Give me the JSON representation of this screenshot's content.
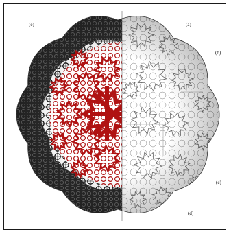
{
  "panel_labels": {
    "e": "(e)",
    "a": "(a)",
    "b": "(b)",
    "c": "(c)",
    "d": "(d)"
  },
  "colors": {
    "frame": "#1a1a1a",
    "red_region": "#b01212",
    "dark_region": "#141414",
    "light_region": "#ffffff",
    "line_on_light": "#555555"
  }
}
